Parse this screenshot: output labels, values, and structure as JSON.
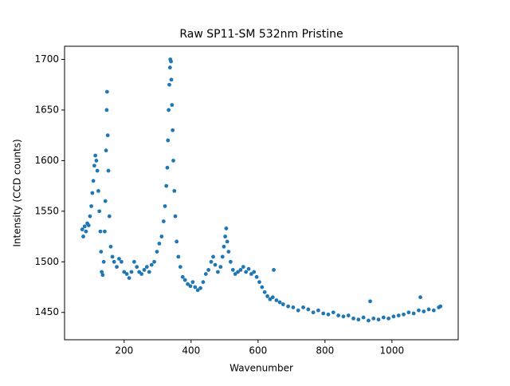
{
  "chart_data": {
    "type": "scatter",
    "title": "Raw SP11-SM 532nm Pristine",
    "xlabel": "Wavenumber",
    "ylabel": "Intensity (CCD counts)",
    "color": "#1f77b4",
    "x": [
      75,
      78,
      82,
      86,
      90,
      94,
      98,
      102,
      105,
      108,
      111,
      114,
      117,
      120,
      123,
      126,
      129,
      131,
      133,
      136,
      139,
      142,
      144,
      146,
      148,
      149,
      151,
      153,
      156,
      160,
      165,
      170,
      178,
      185,
      192,
      200,
      208,
      215,
      222,
      230,
      238,
      245,
      252,
      260,
      268,
      275,
      282,
      290,
      298,
      305,
      312,
      318,
      322,
      326,
      329,
      331,
      333,
      335,
      337,
      338,
      340,
      341,
      343,
      345,
      347,
      350,
      353,
      357,
      362,
      368,
      375,
      382,
      390,
      398,
      405,
      412,
      420,
      428,
      436,
      444,
      452,
      460,
      466,
      472,
      480,
      488,
      494,
      498,
      502,
      505,
      508,
      512,
      518,
      525,
      532,
      540,
      548,
      556,
      564,
      572,
      580,
      588,
      596,
      604,
      612,
      620,
      628,
      636,
      644,
      647,
      655,
      665,
      675,
      690,
      705,
      720,
      735,
      750,
      765,
      780,
      795,
      810,
      825,
      840,
      855,
      870,
      885,
      900,
      915,
      930,
      935,
      945,
      960,
      975,
      990,
      1005,
      1020,
      1035,
      1050,
      1065,
      1080,
      1085,
      1095,
      1110,
      1125,
      1140,
      1145
    ],
    "values": [
      1532,
      1525,
      1535,
      1530,
      1538,
      1536,
      1545,
      1555,
      1568,
      1580,
      1595,
      1605,
      1600,
      1590,
      1570,
      1550,
      1530,
      1510,
      1490,
      1487,
      1500,
      1530,
      1560,
      1610,
      1650,
      1668,
      1625,
      1590,
      1545,
      1515,
      1505,
      1500,
      1495,
      1503,
      1500,
      1490,
      1488,
      1484,
      1490,
      1500,
      1495,
      1490,
      1488,
      1492,
      1495,
      1490,
      1497,
      1500,
      1510,
      1518,
      1525,
      1540,
      1555,
      1575,
      1593,
      1620,
      1650,
      1675,
      1692,
      1700,
      1698,
      1680,
      1655,
      1630,
      1600,
      1570,
      1545,
      1520,
      1505,
      1495,
      1485,
      1482,
      1478,
      1476,
      1480,
      1475,
      1472,
      1474,
      1480,
      1488,
      1492,
      1500,
      1505,
      1497,
      1490,
      1495,
      1505,
      1515,
      1525,
      1533,
      1520,
      1510,
      1500,
      1492,
      1488,
      1490,
      1492,
      1495,
      1490,
      1493,
      1488,
      1490,
      1485,
      1480,
      1475,
      1470,
      1466,
      1463,
      1465,
      1492,
      1462,
      1460,
      1458,
      1456,
      1455,
      1452,
      1455,
      1453,
      1450,
      1452,
      1449,
      1448,
      1450,
      1447,
      1446,
      1447,
      1444,
      1443,
      1445,
      1442,
      1461,
      1444,
      1443,
      1445,
      1444,
      1446,
      1447,
      1448,
      1450,
      1449,
      1452,
      1465,
      1451,
      1453,
      1452,
      1455,
      1456
    ],
    "xlim": [
      22,
      1198
    ],
    "ylim": [
      1423,
      1713
    ],
    "xticks": [
      200,
      400,
      600,
      800,
      1000
    ],
    "yticks": [
      1450,
      1500,
      1550,
      1600,
      1650,
      1700
    ]
  }
}
